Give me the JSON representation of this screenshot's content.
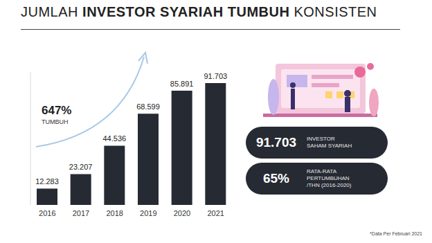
{
  "chart_data": {
    "type": "bar",
    "title": "JUMLAH INVESTOR SYARIAH TUMBUH KONSISTEN",
    "title_bold": "INVESTOR SYARIAH TUMBUH",
    "categories": [
      "2016",
      "2017",
      "2018",
      "2019",
      "2020",
      "2021"
    ],
    "values": [
      12283,
      23207,
      44536,
      68599,
      85891,
      91703
    ],
    "value_labels": [
      "12.283",
      "23.207",
      "44.536",
      "68.599",
      "85.891",
      "91.703"
    ],
    "color": "#262a33",
    "ylim": [
      0,
      100000
    ],
    "tick_labels": "x",
    "data_labels": true,
    "annotation": {
      "text": "647%",
      "subtext": "TUMBUH"
    },
    "stats": [
      {
        "value": "91.703",
        "label": [
          "INVESTOR",
          "SAHAM SYARIAH"
        ]
      },
      {
        "value": "65%",
        "label": [
          "RATA-RATA",
          "PERTUMBUHAN",
          "/THN (2016-2020)"
        ]
      }
    ],
    "footnote": "*Data Per Februari 2021"
  }
}
